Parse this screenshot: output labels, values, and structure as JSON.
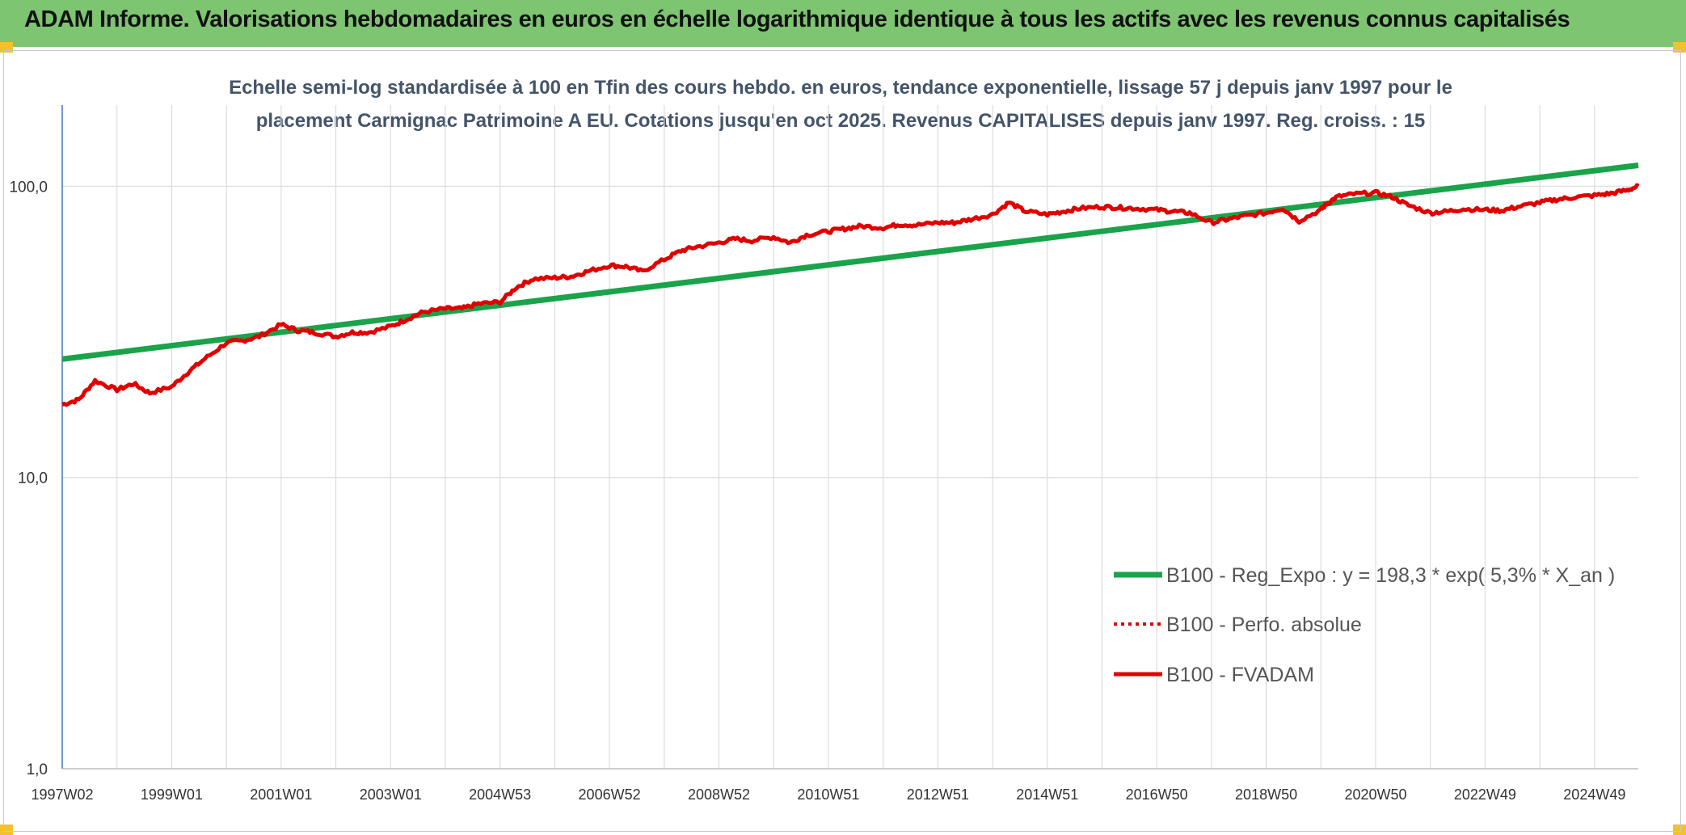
{
  "header": {
    "title": "ADAM Informe. Valorisations hebdomadaires en euros en échelle logarithmique identique à tous les actifs avec les revenus connus capitalisés"
  },
  "colors": {
    "banner": "#7dc571",
    "regression": "#1aa34a",
    "fvadam": "#e00000",
    "perf_absolue": "#e00000",
    "grid": "#dcdcdc",
    "subtitle": "#44546a"
  },
  "chart_data": {
    "type": "line",
    "y_scale": "log",
    "ylim": [
      1,
      190
    ],
    "subtitle": [
      "Echelle semi-log standardisée à 100 en Tfin des cours hebdo. en euros, tendance exponentielle, lissage 57 j depuis janv 1997 pour le",
      "placement Carmignac Patrimoine A EU. Cotations jusqu'en oct 2025. Revenus CAPITALISES depuis janv 1997. Reg. croiss. : 15"
    ],
    "y_ticks": [
      {
        "value": 100,
        "label": "100,0"
      },
      {
        "value": 10,
        "label": "10,0"
      },
      {
        "value": 1,
        "label": "1,0"
      }
    ],
    "x_range": [
      1997.0,
      2025.8
    ],
    "x_ticks": [
      {
        "x": 1997.0,
        "label": "1997W02"
      },
      {
        "x": 1999.0,
        "label": "1999W01"
      },
      {
        "x": 2001.0,
        "label": "2001W01"
      },
      {
        "x": 2003.0,
        "label": "2003W01"
      },
      {
        "x": 2005.0,
        "label": "2004W53"
      },
      {
        "x": 2007.0,
        "label": "2006W52"
      },
      {
        "x": 2009.0,
        "label": "2008W52"
      },
      {
        "x": 2011.0,
        "label": "2010W51"
      },
      {
        "x": 2013.0,
        "label": "2012W51"
      },
      {
        "x": 2015.0,
        "label": "2014W51"
      },
      {
        "x": 2017.0,
        "label": "2016W50"
      },
      {
        "x": 2019.0,
        "label": "2018W50"
      },
      {
        "x": 2021.0,
        "label": "2020W50"
      },
      {
        "x": 2023.0,
        "label": "2022W49"
      },
      {
        "x": 2025.0,
        "label": "2024W49"
      }
    ],
    "vertical_gridlines_x": [
      1997.0,
      1998.0,
      1999.0,
      2000.0,
      2001.0,
      2002.0,
      2003.0,
      2004.0,
      2005.0,
      2006.0,
      2007.0,
      2008.0,
      2009.0,
      2010.0,
      2011.0,
      2012.0,
      2013.0,
      2014.0,
      2015.0,
      2016.0,
      2017.0,
      2018.0,
      2019.0,
      2020.0,
      2021.0,
      2022.0,
      2023.0,
      2024.0,
      2025.0
    ],
    "series": [
      {
        "name": "B100 - Reg_Expo : y = 198,3 * exp( 5,3% *  X_an )",
        "style": "solid-thick",
        "x": [
          1997.0,
          2025.8
        ],
        "values": [
          25.5,
          118
        ]
      },
      {
        "name": "B100 - Perfo. absolue",
        "style": "dotted",
        "x": [],
        "values": []
      },
      {
        "name": "B100 - FVADAM",
        "style": "solid",
        "x": [
          1997.0,
          1997.3,
          1997.6,
          1998.0,
          1998.3,
          1998.6,
          1999.0,
          1999.3,
          1999.6,
          2000.0,
          2000.3,
          2000.6,
          2001.0,
          2001.3,
          2001.6,
          2002.0,
          2002.3,
          2002.6,
          2003.0,
          2003.3,
          2003.6,
          2004.0,
          2004.3,
          2004.6,
          2005.0,
          2005.3,
          2005.6,
          2006.0,
          2006.3,
          2006.6,
          2007.0,
          2007.3,
          2007.6,
          2008.0,
          2008.3,
          2008.6,
          2009.0,
          2009.3,
          2009.6,
          2010.0,
          2010.3,
          2010.6,
          2011.0,
          2011.3,
          2011.6,
          2012.0,
          2012.3,
          2012.6,
          2013.0,
          2013.3,
          2013.6,
          2014.0,
          2014.3,
          2014.6,
          2015.0,
          2015.3,
          2015.6,
          2016.0,
          2016.3,
          2016.6,
          2017.0,
          2017.3,
          2017.6,
          2018.0,
          2018.3,
          2018.6,
          2019.0,
          2019.3,
          2019.6,
          2020.0,
          2020.1,
          2020.3,
          2020.6,
          2021.0,
          2021.3,
          2021.6,
          2022.0,
          2022.3,
          2022.6,
          2023.0,
          2023.3,
          2023.6,
          2024.0,
          2024.3,
          2024.6,
          2025.0,
          2025.3,
          2025.6,
          2025.8
        ],
        "values": [
          17.8,
          18.5,
          21.5,
          20.0,
          21.0,
          19.5,
          20.5,
          23.0,
          25.5,
          29.0,
          29.5,
          30.5,
          33.5,
          32.0,
          31.5,
          30.5,
          31.5,
          31.5,
          33.0,
          35.0,
          37.0,
          38.0,
          38.0,
          39.5,
          40.0,
          45.0,
          48.0,
          48.5,
          49.0,
          51.0,
          53.5,
          53.0,
          51.0,
          56.0,
          60.0,
          62.0,
          64.0,
          66.0,
          65.0,
          67.0,
          64.0,
          68.0,
          70.0,
          71.5,
          73.0,
          72.0,
          74.0,
          73.5,
          75.0,
          75.0,
          77.0,
          80.0,
          88.0,
          82.0,
          80.0,
          82.0,
          84.0,
          85.0,
          84.5,
          84.0,
          83.0,
          82.0,
          81.0,
          75.0,
          77.0,
          79.0,
          81.0,
          84.0,
          76.0,
          83.0,
          87.0,
          92.0,
          94.0,
          95.0,
          92.0,
          86.0,
          81.0,
          82.0,
          83.5,
          83.0,
          82.5,
          85.0,
          88.0,
          90.0,
          91.5,
          93.0,
          94.5,
          97.0,
          100.0
        ]
      }
    ],
    "legend": [
      "B100 - Reg_Expo : y = 198,3 * exp( 5,3% *  X_an )",
      "B100 - Perfo. absolue",
      "B100 - FVADAM"
    ]
  }
}
